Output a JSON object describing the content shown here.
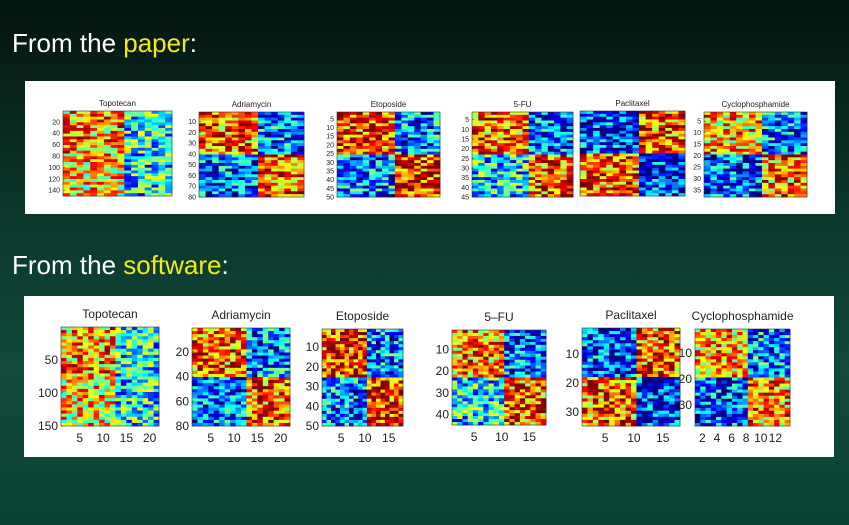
{
  "headings": {
    "paper_prefix": "From the ",
    "paper_highlight": "paper",
    "paper_suffix": ":",
    "software_prefix": "From the ",
    "software_highlight": "software",
    "software_suffix": ":"
  },
  "colors": {
    "highlight": "#f2e81a",
    "heading": "#ffffff",
    "panel_bg": "#ffffff",
    "colormap": "jet"
  },
  "chart_data": [
    {
      "type": "heatmap",
      "source": "paper",
      "title": "Topotecan",
      "y_ticks": [
        "20",
        "40",
        "60",
        "80",
        "100",
        "120",
        "140"
      ],
      "y_range": [
        1,
        150
      ],
      "x_ticks": [],
      "pattern": "2x2-block"
    },
    {
      "type": "heatmap",
      "source": "paper",
      "title": "Adriamycin",
      "y_ticks": [
        "10",
        "20",
        "30",
        "40",
        "50",
        "60",
        "70",
        "80"
      ],
      "y_range": [
        1,
        80
      ],
      "x_ticks": [],
      "pattern": "2x2-block"
    },
    {
      "type": "heatmap",
      "source": "paper",
      "title": "Etoposide",
      "y_ticks": [
        "5",
        "10",
        "15",
        "20",
        "25",
        "30",
        "35",
        "40",
        "45",
        "50"
      ],
      "y_range": [
        1,
        50
      ],
      "x_ticks": [],
      "pattern": "2x2-block"
    },
    {
      "type": "heatmap",
      "source": "paper",
      "title": "5-FU",
      "y_ticks": [
        "5",
        "10",
        "15",
        "20",
        "25",
        "30",
        "35",
        "40",
        "45"
      ],
      "y_range": [
        1,
        45
      ],
      "x_ticks": [],
      "pattern": "2x2-block"
    },
    {
      "type": "heatmap",
      "source": "paper",
      "title": "Paclitaxel",
      "y_ticks": [],
      "y_range": [
        1,
        35
      ],
      "x_ticks": [],
      "pattern": "2x2-block"
    },
    {
      "type": "heatmap",
      "source": "paper",
      "title": "Cyclophosphamide",
      "y_ticks": [
        "5",
        "10",
        "15",
        "20",
        "25",
        "30",
        "35"
      ],
      "y_range": [
        1,
        38
      ],
      "x_ticks": [],
      "pattern": "2x2-block"
    },
    {
      "type": "heatmap",
      "source": "software",
      "title": "Topotecan",
      "y_ticks": [
        "50",
        "100",
        "150"
      ],
      "y_range": [
        1,
        150
      ],
      "x_ticks": [
        "5",
        "10",
        "15",
        "20"
      ],
      "x_range": [
        1,
        22
      ],
      "pattern": "2x2-block"
    },
    {
      "type": "heatmap",
      "source": "software",
      "title": "Adriamycin",
      "y_ticks": [
        "20",
        "40",
        "60",
        "80"
      ],
      "y_range": [
        1,
        80
      ],
      "x_ticks": [
        "5",
        "10",
        "15",
        "20"
      ],
      "x_range": [
        1,
        22
      ],
      "pattern": "2x2-block"
    },
    {
      "type": "heatmap",
      "source": "software",
      "title": "Etoposide",
      "y_ticks": [
        "10",
        "20",
        "30",
        "40",
        "50"
      ],
      "y_range": [
        1,
        50
      ],
      "x_ticks": [
        "5",
        "10",
        "15"
      ],
      "x_range": [
        1,
        18
      ],
      "pattern": "2x2-block"
    },
    {
      "type": "heatmap",
      "source": "software",
      "title": "5–FU",
      "y_ticks": [
        "10",
        "20",
        "30",
        "40"
      ],
      "y_range": [
        1,
        45
      ],
      "x_ticks": [
        "5",
        "10",
        "15"
      ],
      "x_range": [
        1,
        18
      ],
      "pattern": "2x2-block"
    },
    {
      "type": "heatmap",
      "source": "software",
      "title": "Paclitaxel",
      "y_ticks": [
        "10",
        "20",
        "30"
      ],
      "y_range": [
        1,
        35
      ],
      "x_ticks": [
        "5",
        "10",
        "15"
      ],
      "x_range": [
        1,
        18
      ],
      "pattern": "2x2-block"
    },
    {
      "type": "heatmap",
      "source": "software",
      "title": "Cyclophosphamide",
      "y_ticks": [
        "10",
        "20",
        "30"
      ],
      "y_range": [
        1,
        38
      ],
      "x_ticks": [
        "2",
        "4",
        "6",
        "8",
        "10",
        "12"
      ],
      "x_range": [
        1,
        14
      ],
      "pattern": "2x2-block"
    }
  ]
}
